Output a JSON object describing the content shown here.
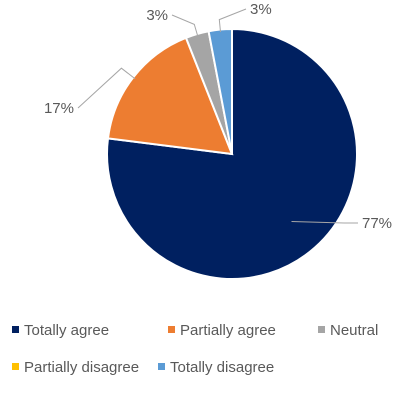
{
  "chart_data": {
    "type": "pie",
    "title": "",
    "categories": [
      "Totally agree",
      "Partially agree",
      "Neutral",
      "Partially disagree",
      "Totally disagree"
    ],
    "values": [
      77,
      17,
      3,
      0,
      3
    ],
    "data_labels": [
      "77%",
      "17%",
      "3%",
      "",
      "3%"
    ],
    "colors": [
      "#002060",
      "#ED7D31",
      "#A5A5A5",
      "#FFC000",
      "#5B9BD5"
    ],
    "legend_position": "bottom",
    "leader_lines": true
  }
}
